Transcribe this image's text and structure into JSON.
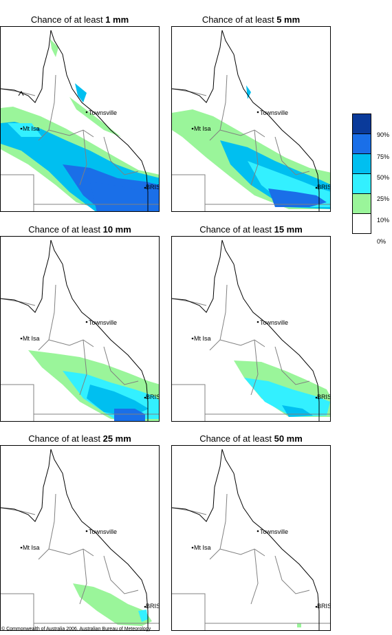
{
  "panels": [
    {
      "prefix": "Chance of at least ",
      "amount": "1 mm"
    },
    {
      "prefix": "Chance of at least ",
      "amount": "5 mm"
    },
    {
      "prefix": "Chance of at least ",
      "amount": "10 mm"
    },
    {
      "prefix": "Chance of at least ",
      "amount": "15 mm"
    },
    {
      "prefix": "Chance of at least ",
      "amount": "25 mm"
    },
    {
      "prefix": "Chance of at least ",
      "amount": "50 mm"
    }
  ],
  "places": {
    "townsville": "Townsville",
    "mt_isa": "Mt Isa",
    "brisbane": "BRIS"
  },
  "legend": {
    "labels": [
      "90%",
      "75%",
      "50%",
      "25%",
      "10%",
      "0%"
    ],
    "colors": [
      "#0a3a9a",
      "#1a6fe8",
      "#00bff0",
      "#33f0ff",
      "#9af59a",
      "#ffffff"
    ]
  },
  "colors": {
    "land_line": "#808080",
    "coast": "#000000"
  },
  "copyright": "© Commonwealth of Australia 2006, Australian Bureau of Meteorology"
}
